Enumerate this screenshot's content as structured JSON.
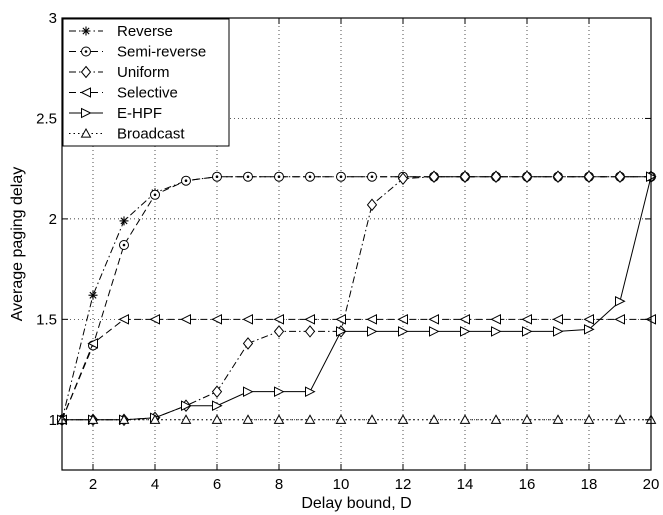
{
  "chart_data": {
    "type": "line",
    "xlabel": "Delay bound, D",
    "ylabel": "Average paging delay",
    "xlim": [
      1,
      20
    ],
    "ylim": [
      0.75,
      3
    ],
    "xticks": [
      2,
      4,
      6,
      8,
      10,
      12,
      14,
      16,
      18,
      20
    ],
    "yticks": [
      1,
      1.5,
      2,
      2.5,
      3
    ],
    "ytick_labels": [
      "1",
      "1.5",
      "2",
      "2.5",
      "3"
    ],
    "grid": true,
    "legend_position": "top-left",
    "x": [
      1,
      2,
      3,
      4,
      5,
      6,
      7,
      8,
      9,
      10,
      11,
      12,
      13,
      14,
      15,
      16,
      17,
      18,
      19,
      20
    ],
    "series": [
      {
        "name": "Reverse",
        "line_style": "dash-dot",
        "marker": "asterisk",
        "values": [
          1.0,
          1.62,
          1.99,
          2.13,
          2.19,
          2.21,
          2.21,
          2.21,
          2.21,
          2.21,
          2.21,
          2.21,
          2.21,
          2.21,
          2.21,
          2.21,
          2.21,
          2.21,
          2.21,
          2.21
        ]
      },
      {
        "name": "Semi-reverse",
        "line_style": "dashed",
        "marker": "circle-dot",
        "values": [
          1.0,
          1.37,
          1.87,
          2.12,
          2.19,
          2.21,
          2.21,
          2.21,
          2.21,
          2.21,
          2.21,
          2.21,
          2.21,
          2.21,
          2.21,
          2.21,
          2.21,
          2.21,
          2.21,
          2.21
        ]
      },
      {
        "name": "Uniform",
        "line_style": "dash-dot",
        "marker": "diamond",
        "values": [
          1.0,
          1.0,
          1.0,
          1.01,
          1.07,
          1.14,
          1.38,
          1.44,
          1.44,
          1.44,
          2.07,
          2.2,
          2.21,
          2.21,
          2.21,
          2.21,
          2.21,
          2.21,
          2.21,
          2.21
        ]
      },
      {
        "name": "Selective",
        "line_style": "dashed",
        "marker": "triangle-left",
        "values": [
          1.0,
          1.38,
          1.5,
          1.5,
          1.5,
          1.5,
          1.5,
          1.5,
          1.5,
          1.5,
          1.5,
          1.5,
          1.5,
          1.5,
          1.5,
          1.5,
          1.5,
          1.5,
          1.5,
          1.5
        ]
      },
      {
        "name": "E-HPF",
        "line_style": "solid",
        "marker": "triangle-right",
        "values": [
          1.0,
          1.0,
          1.0,
          1.01,
          1.07,
          1.07,
          1.14,
          1.14,
          1.14,
          1.44,
          1.44,
          1.44,
          1.44,
          1.44,
          1.44,
          1.44,
          1.44,
          1.45,
          1.59,
          2.21
        ]
      },
      {
        "name": "Broadcast",
        "line_style": "dotted",
        "marker": "triangle-up",
        "values": [
          1,
          1,
          1,
          1,
          1,
          1,
          1,
          1,
          1,
          1,
          1,
          1,
          1,
          1,
          1,
          1,
          1,
          1,
          1,
          1
        ]
      }
    ]
  }
}
